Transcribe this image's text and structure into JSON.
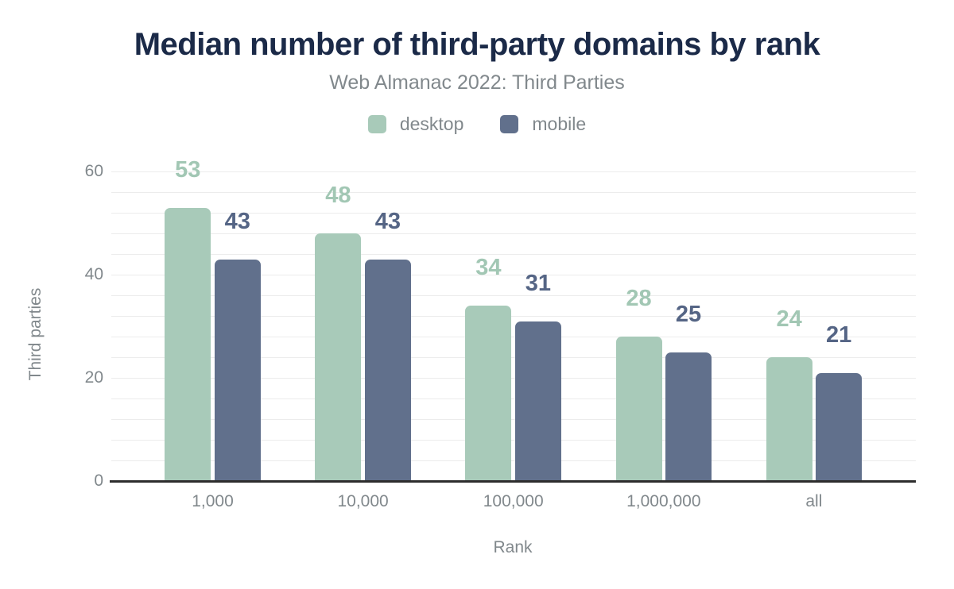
{
  "title": "Median number of third-party domains by rank",
  "subtitle": "Web Almanac 2022: Third Parties",
  "colors": {
    "title_text": "#1b2a48",
    "muted_text": "#81888c",
    "gridline": "#ececec",
    "axis_line": "#2d2d2d",
    "background": "#ffffff",
    "desktop": "#a8cab9",
    "mobile": "#61708c"
  },
  "chart_data": {
    "type": "bar",
    "title": "Median number of third-party domains by rank",
    "subtitle": "Web Almanac 2022: Third Parties",
    "categories": [
      "1,000",
      "10,000",
      "100,000",
      "1,000,000",
      "all"
    ],
    "series": [
      {
        "name": "desktop",
        "values": [
          53,
          48,
          34,
          28,
          24
        ],
        "color": "#a8cab9",
        "label_color": "#a2c7b4"
      },
      {
        "name": "mobile",
        "values": [
          43,
          43,
          31,
          25,
          21
        ],
        "color": "#61708c",
        "label_color": "#556585"
      }
    ],
    "xlabel": "Rank",
    "ylabel": "Third parties",
    "ylim": [
      0,
      60
    ],
    "yticks": [
      0,
      20,
      40,
      60
    ],
    "minor_grid_step": 4,
    "grid": "horizontal",
    "legend_position": "top",
    "value_labels_shown": true
  }
}
